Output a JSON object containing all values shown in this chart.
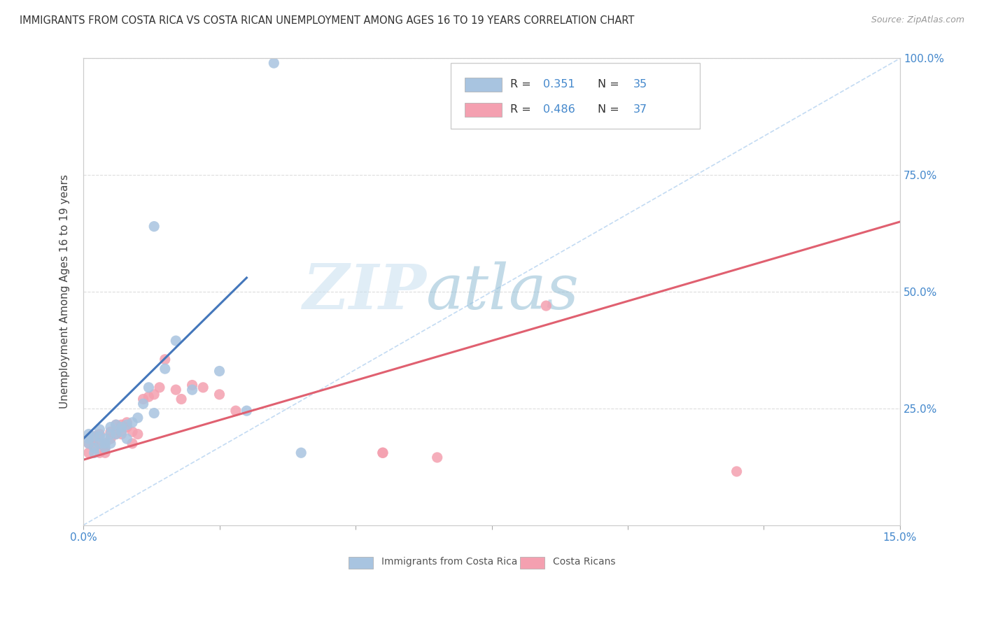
{
  "title": "IMMIGRANTS FROM COSTA RICA VS COSTA RICAN UNEMPLOYMENT AMONG AGES 16 TO 19 YEARS CORRELATION CHART",
  "source": "Source: ZipAtlas.com",
  "ylabel": "Unemployment Among Ages 16 to 19 years",
  "xlim": [
    0.0,
    0.15
  ],
  "ylim": [
    0.0,
    1.0
  ],
  "blue_color": "#a8c4e0",
  "pink_color": "#f4a0b0",
  "blue_line_color": "#4477bb",
  "pink_line_color": "#e06070",
  "ref_line_color": "#cccccc",
  "watermark": "ZIPatlas",
  "watermark_zip_color": "#c8dff0",
  "watermark_atlas_color": "#a0c4d8",
  "background_color": "#ffffff",
  "grid_color": "#dddddd",
  "blue_scatter_x": [
    0.001,
    0.001,
    0.001,
    0.002,
    0.002,
    0.002,
    0.003,
    0.003,
    0.003,
    0.004,
    0.004,
    0.004,
    0.005,
    0.005,
    0.005,
    0.006,
    0.006,
    0.007,
    0.007,
    0.008,
    0.008,
    0.009,
    0.01,
    0.011,
    0.012,
    0.013,
    0.015,
    0.017,
    0.02,
    0.025,
    0.03,
    0.04,
    0.013,
    0.035
  ],
  "blue_scatter_y": [
    0.195,
    0.185,
    0.175,
    0.19,
    0.165,
    0.155,
    0.19,
    0.175,
    0.205,
    0.185,
    0.175,
    0.165,
    0.21,
    0.195,
    0.175,
    0.215,
    0.195,
    0.2,
    0.21,
    0.215,
    0.185,
    0.22,
    0.23,
    0.26,
    0.295,
    0.24,
    0.335,
    0.395,
    0.29,
    0.33,
    0.245,
    0.155,
    0.64,
    0.99
  ],
  "pink_scatter_x": [
    0.001,
    0.001,
    0.002,
    0.002,
    0.003,
    0.003,
    0.003,
    0.004,
    0.004,
    0.004,
    0.005,
    0.005,
    0.006,
    0.006,
    0.007,
    0.007,
    0.008,
    0.008,
    0.009,
    0.009,
    0.01,
    0.011,
    0.012,
    0.013,
    0.014,
    0.015,
    0.017,
    0.018,
    0.02,
    0.022,
    0.025,
    0.028,
    0.055,
    0.055,
    0.065,
    0.085,
    0.12
  ],
  "pink_scatter_y": [
    0.175,
    0.155,
    0.17,
    0.19,
    0.175,
    0.155,
    0.195,
    0.175,
    0.155,
    0.165,
    0.2,
    0.185,
    0.215,
    0.195,
    0.215,
    0.195,
    0.21,
    0.22,
    0.2,
    0.175,
    0.195,
    0.27,
    0.275,
    0.28,
    0.295,
    0.355,
    0.29,
    0.27,
    0.3,
    0.295,
    0.28,
    0.245,
    0.155,
    0.155,
    0.145,
    0.47,
    0.115
  ],
  "blue_trend_x0": 0.0,
  "blue_trend_x1": 0.03,
  "blue_trend_y0": 0.185,
  "blue_trend_y1": 0.53,
  "pink_trend_x0": 0.0,
  "pink_trend_x1": 0.15,
  "pink_trend_y0": 0.14,
  "pink_trend_y1": 0.65
}
